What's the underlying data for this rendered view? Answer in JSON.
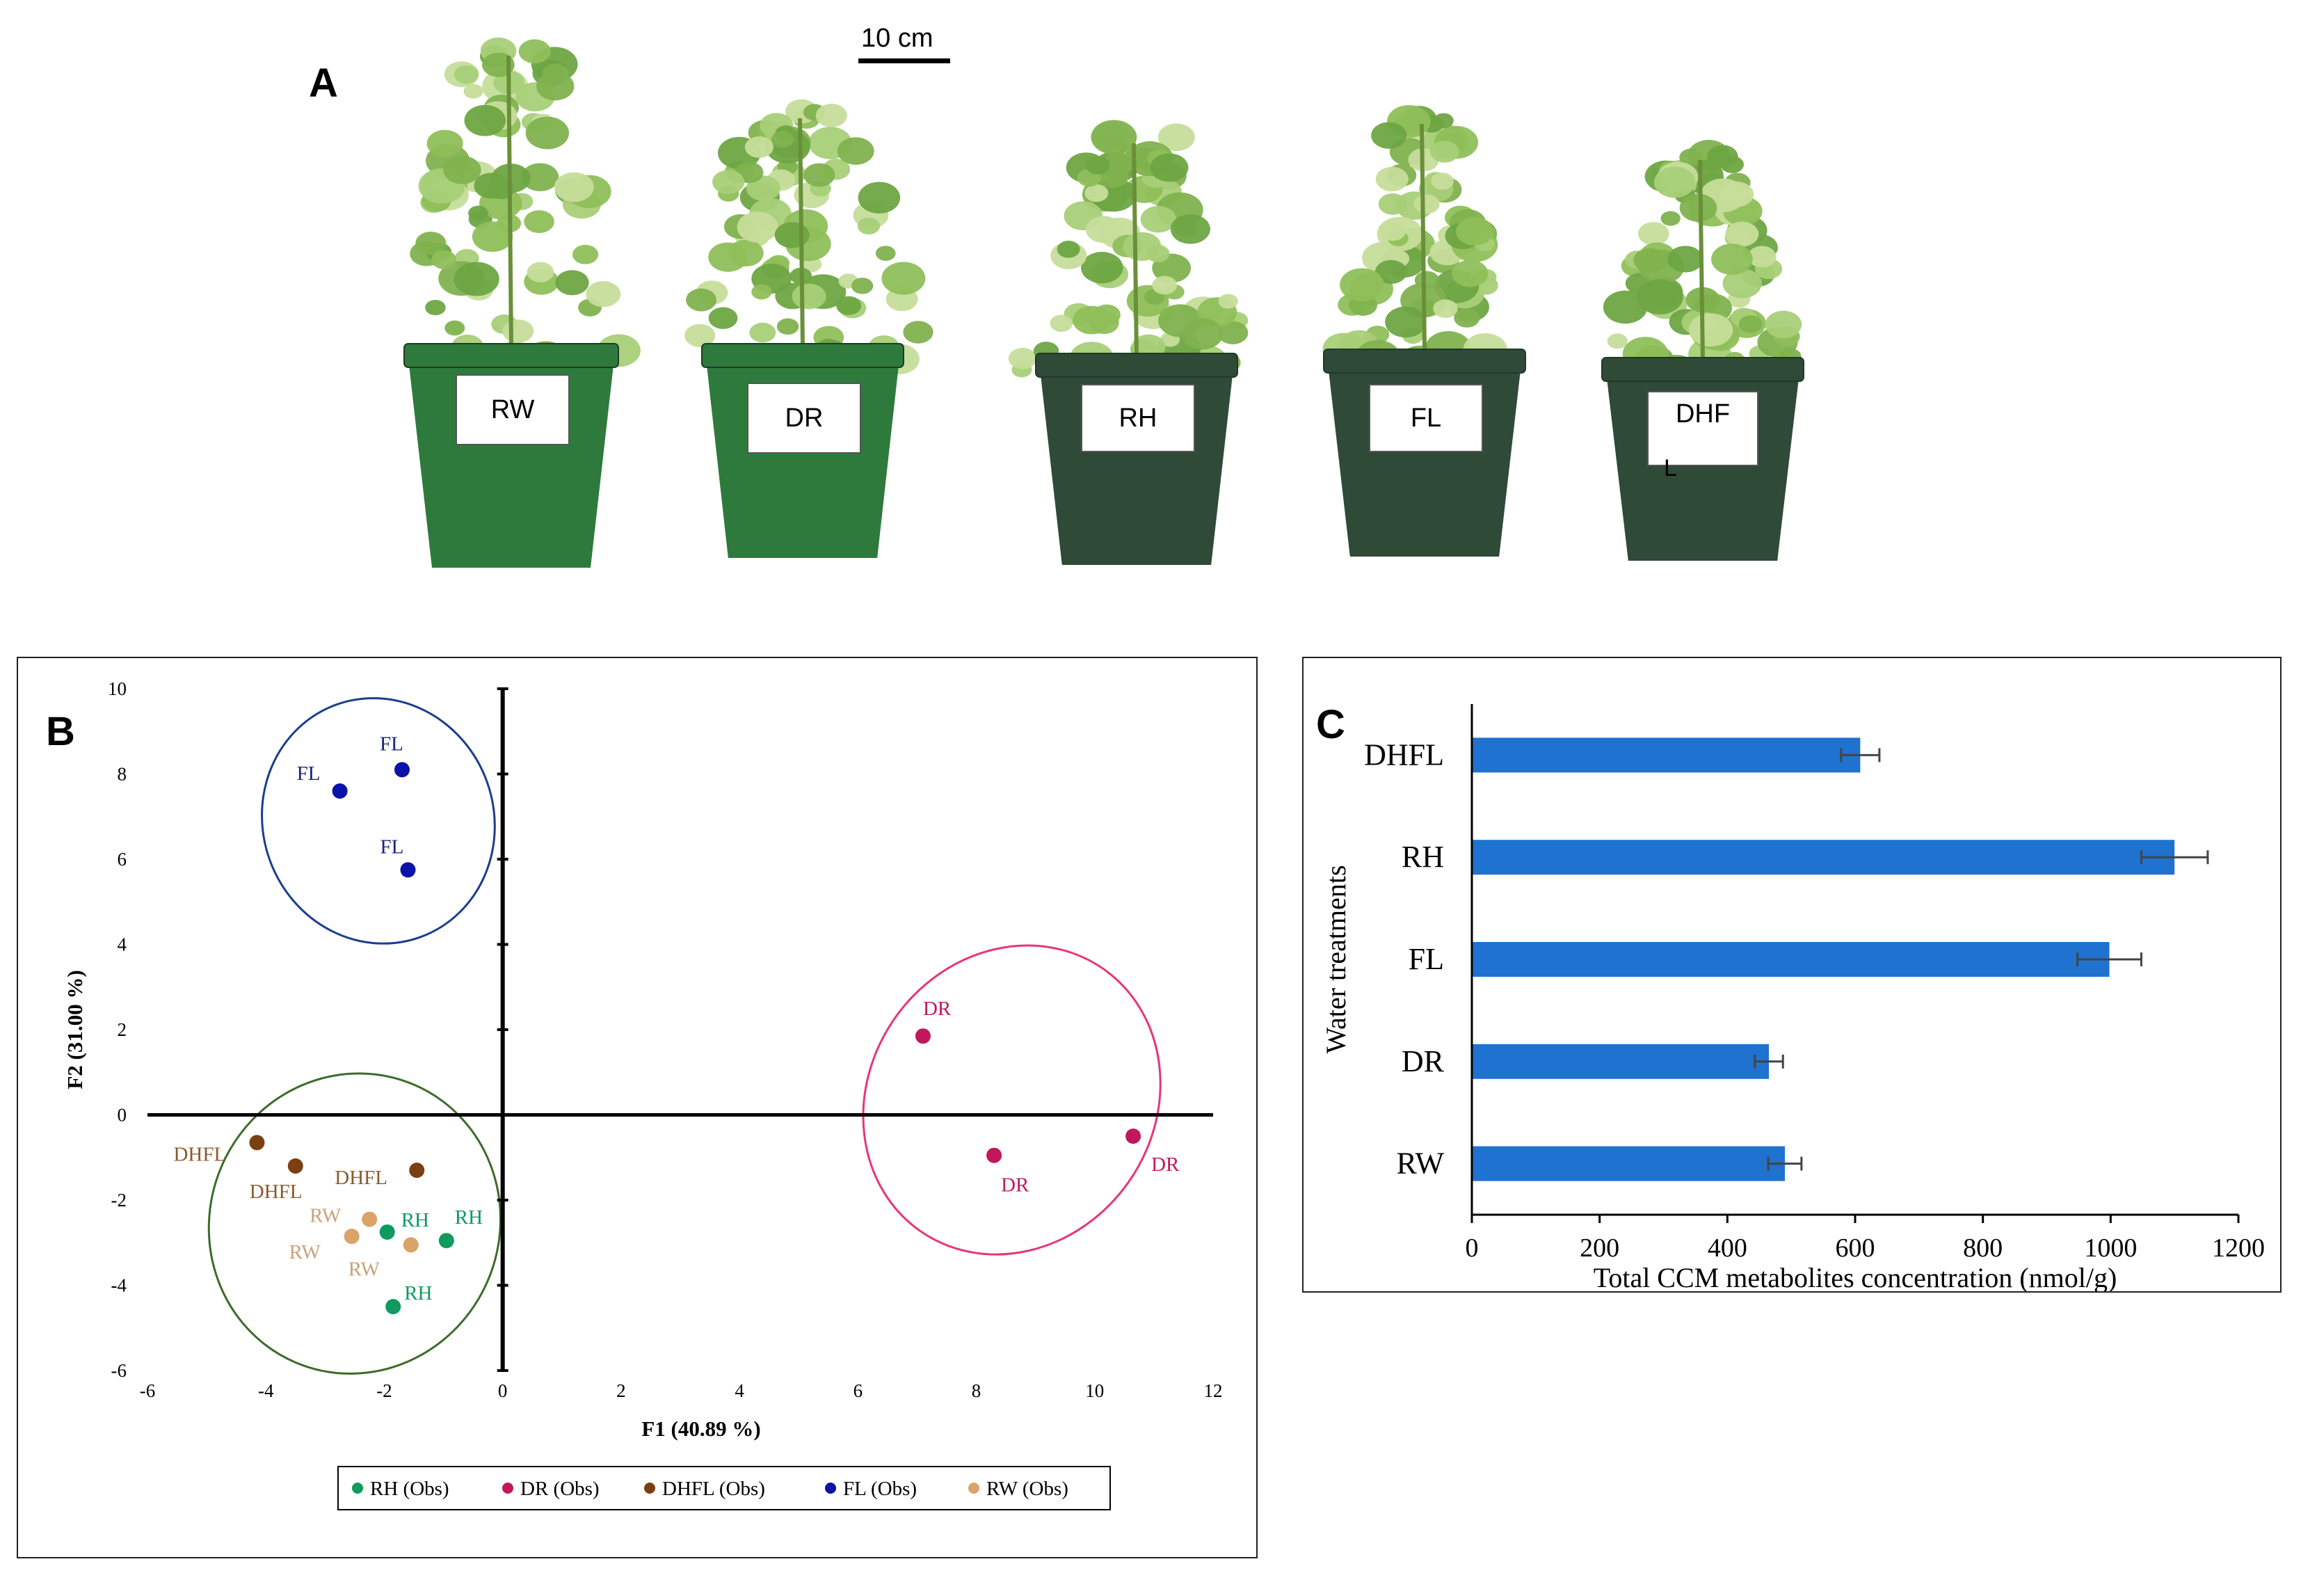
{
  "panel_a": {
    "letter": "A",
    "scale_bar": "10 cm",
    "pots": [
      {
        "label": "RW",
        "label2": ""
      },
      {
        "label": "DR",
        "label2": ""
      },
      {
        "label": "RH",
        "label2": ""
      },
      {
        "label": "FL",
        "label2": ""
      },
      {
        "label": "DHF",
        "label2": "L"
      }
    ],
    "colors": {
      "pot_green": "#2e7a3c",
      "pot_dark": "#2f4a37",
      "foliage": "#8fbf5a"
    }
  },
  "panel_b": {
    "letter": "B",
    "chart_data": {
      "type": "scatter",
      "xlabel": "F1 (40.89 %)",
      "ylabel": "F2 (31.00 %)",
      "xlim": [
        -6,
        12
      ],
      "ylim": [
        -6,
        10
      ],
      "x_ticks": [
        "-6",
        "-4",
        "-2",
        "0",
        "2",
        "4",
        "6",
        "8",
        "10",
        "12"
      ],
      "y_ticks": [
        "-6",
        "-4",
        "-2",
        "0",
        "2",
        "4",
        "6",
        "8",
        "10"
      ],
      "legend_position": "bottom",
      "series": [
        {
          "name": "RH (Obs)",
          "color": "#0f9a5e",
          "label_color": "#0f9a5e",
          "points": [
            {
              "x": -1.95,
              "y": -2.75,
              "label": "RH"
            },
            {
              "x": -0.95,
              "y": -2.95,
              "label": "RH"
            },
            {
              "x": -1.85,
              "y": -4.5,
              "label": "RH"
            }
          ]
        },
        {
          "name": "DR (Obs)",
          "color": "#c2185b",
          "label_color": "#c2185b",
          "points": [
            {
              "x": 7.1,
              "y": 1.85,
              "label": "DR"
            },
            {
              "x": 8.3,
              "y": -0.95,
              "label": "DR"
            },
            {
              "x": 10.65,
              "y": -0.5,
              "label": "DR"
            }
          ]
        },
        {
          "name": "DHFL (Obs)",
          "color": "#7b3f12",
          "label_color": "#8a5a2a",
          "points": [
            {
              "x": -4.15,
              "y": -0.65,
              "label": "DHFL"
            },
            {
              "x": -3.5,
              "y": -1.2,
              "label": "DHFL"
            },
            {
              "x": -1.45,
              "y": -1.3,
              "label": "DHFL"
            }
          ]
        },
        {
          "name": "FL (Obs)",
          "color": "#0a12a8",
          "label_color": "#1a237e",
          "points": [
            {
              "x": -2.75,
              "y": 7.6,
              "label": "FL"
            },
            {
              "x": -1.7,
              "y": 8.1,
              "label": "FL"
            },
            {
              "x": -1.6,
              "y": 5.75,
              "label": "FL"
            }
          ]
        },
        {
          "name": "RW (Obs)",
          "color": "#d9a36a",
          "label_color": "#c9a27a",
          "points": [
            {
              "x": -2.25,
              "y": -2.45,
              "label": "RW"
            },
            {
              "x": -2.55,
              "y": -2.85,
              "label": "RW"
            },
            {
              "x": -1.55,
              "y": -3.05,
              "label": "RW"
            }
          ]
        }
      ],
      "ellipses": [
        {
          "cx": -2.1,
          "cy": 6.9,
          "rx": 1.95,
          "ry": 2.9,
          "angle": -20,
          "color": "#1a3e8c"
        },
        {
          "cx": 8.6,
          "cy": 0.35,
          "rx": 2.7,
          "ry": 3.35,
          "angle": -55,
          "color": "#e8357a"
        },
        {
          "cx": -2.5,
          "cy": -2.55,
          "rx": 2.55,
          "ry": 3.4,
          "angle": -67,
          "color": "#3d6b2a"
        }
      ]
    }
  },
  "panel_c": {
    "letter": "C",
    "chart_data": {
      "type": "bar",
      "orientation": "horizontal",
      "categories": [
        "DHFL",
        "RH",
        "FL",
        "DR",
        "RW"
      ],
      "values": [
        608,
        1100,
        998,
        465,
        490
      ],
      "errors": [
        30,
        52,
        50,
        22,
        26
      ],
      "xlabel": "Total CCM metabolites concentration (nmol/g)",
      "ylabel": "Water treatments",
      "xlim": [
        0,
        1200
      ],
      "x_ticks": [
        "0",
        "200",
        "400",
        "600",
        "800",
        "1000",
        "1200"
      ],
      "bar_color": "#1f72cf",
      "grid": false
    }
  }
}
